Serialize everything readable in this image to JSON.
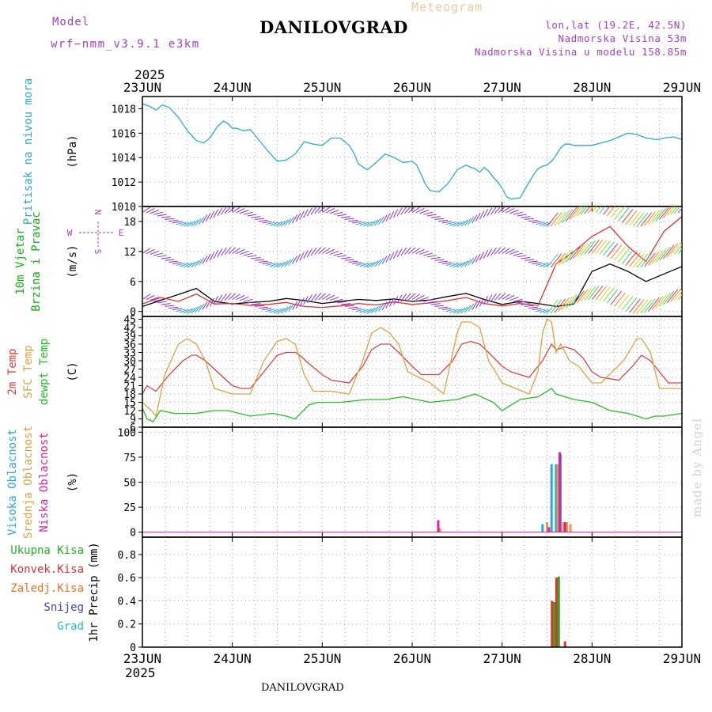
{
  "header": {
    "title": "DANILOVGRAD",
    "subtitle": "Meteogram",
    "model_label": "Model",
    "model_value": "wrf−nmm_v3.9.1  e3km",
    "location": "lon,lat (19.2E, 42.5N)",
    "elevation": "Nadmorska Visina 53m",
    "model_elevation": "Nadmorska Visina u modelu 158.85m",
    "footer_title": "DANILOVGRAD",
    "watermark": "made by Angel"
  },
  "time_axis": {
    "year": "2025",
    "labels": [
      "23JUN",
      "24JUN",
      "25JUN",
      "26JUN",
      "27JUN",
      "28JUN",
      "29JUN"
    ]
  },
  "chart_data": [
    {
      "type": "line",
      "id": "pressure",
      "ylabel": "(hPa)",
      "side_labels": [
        {
          "text": "Pritisak na nivou mora",
          "color": "#2aa8e0"
        }
      ],
      "ylim": [
        1010,
        1019
      ],
      "yticks": [
        1010,
        1012,
        1014,
        1016,
        1018
      ],
      "grid": true,
      "series": [
        {
          "color": "#2aa8e0",
          "x": [
            0,
            0.08,
            0.15,
            0.22,
            0.3,
            0.4,
            0.5,
            0.6,
            0.68,
            0.75,
            0.83,
            0.9,
            0.95,
            1.0,
            1.05,
            1.12,
            1.2,
            1.3,
            1.4,
            1.5,
            1.6,
            1.7,
            1.8,
            1.9,
            2.0,
            2.1,
            2.2,
            2.3,
            2.35,
            2.4,
            2.5,
            2.6,
            2.7,
            2.8,
            2.9,
            3.0,
            3.05,
            3.1,
            3.15,
            3.2,
            3.3,
            3.4,
            3.5,
            3.6,
            3.65,
            3.7,
            3.75,
            3.8,
            3.85,
            3.9,
            3.95,
            4.0,
            4.05,
            4.1,
            4.2,
            4.3,
            4.35,
            4.4,
            4.45,
            4.5,
            4.55,
            4.6,
            4.65,
            4.7,
            4.75,
            4.8,
            4.9,
            5.0,
            5.1,
            5.2,
            5.3,
            5.4,
            5.5,
            5.6,
            5.7,
            5.75,
            5.8,
            5.9,
            6.0
          ],
          "y": [
            1018.4,
            1018.2,
            1017.9,
            1018.3,
            1018.1,
            1017.3,
            1016.2,
            1015.4,
            1015.2,
            1015.6,
            1016.5,
            1017.0,
            1016.8,
            1016.4,
            1016.4,
            1016.2,
            1016.3,
            1015.4,
            1014.5,
            1013.7,
            1013.8,
            1014.3,
            1015.3,
            1015.1,
            1015.0,
            1015.6,
            1015.6,
            1015.0,
            1014.4,
            1013.5,
            1013.0,
            1013.6,
            1014.3,
            1014.0,
            1013.6,
            1013.7,
            1013.4,
            1012.6,
            1011.8,
            1011.3,
            1011.2,
            1011.9,
            1013.0,
            1013.4,
            1013.2,
            1013.1,
            1012.8,
            1013.2,
            1012.9,
            1012.4,
            1012.0,
            1011.5,
            1010.8,
            1010.6,
            1010.7,
            1012.0,
            1012.6,
            1013.1,
            1013.3,
            1013.4,
            1013.7,
            1014.2,
            1014.8,
            1015.1,
            1015.1,
            1015.0,
            1015.0,
            1015.0,
            1015.2,
            1015.4,
            1015.7,
            1016.0,
            1015.9,
            1015.6,
            1015.5,
            1015.5,
            1015.6,
            1015.7,
            1015.5
          ]
        }
      ]
    },
    {
      "type": "line",
      "id": "wind",
      "ylabel": "(m/s)",
      "side_labels": [
        {
          "text": "10m Vjetar",
          "color": "#10b010"
        },
        {
          "text": "Brzina i Pravac",
          "color": "#10b010"
        }
      ],
      "ylim": [
        -1,
        21
      ],
      "yticks": [
        0,
        6,
        12,
        18
      ],
      "grid": true,
      "compass": {
        "w": "W",
        "e": "E",
        "n": "N",
        "s": "S"
      },
      "series": [
        {
          "name": "speed",
          "color": "#000000",
          "x": [
            0,
            0.2,
            0.4,
            0.6,
            0.8,
            1.0,
            1.2,
            1.4,
            1.6,
            1.8,
            2.0,
            2.2,
            2.4,
            2.6,
            2.8,
            3.0,
            3.2,
            3.4,
            3.6,
            3.8,
            4.0,
            4.2,
            4.4,
            4.6,
            4.8,
            5.0,
            5.2,
            5.4,
            5.6,
            5.8,
            6.0
          ],
          "y": [
            1.0,
            2.2,
            3.4,
            4.6,
            2.0,
            1.5,
            1.8,
            2.0,
            2.6,
            2.2,
            1.6,
            2.0,
            2.4,
            2.2,
            2.5,
            2.0,
            2.3,
            3.0,
            3.6,
            2.4,
            1.4,
            2.0,
            1.6,
            1.0,
            1.5,
            8.0,
            9.5,
            8.0,
            6.0,
            7.5,
            9.0
          ]
        },
        {
          "name": "gust",
          "color": "#e03030",
          "x": [
            0,
            0.2,
            0.4,
            0.6,
            0.8,
            1.0,
            1.2,
            1.4,
            1.6,
            1.8,
            2.0,
            2.2,
            2.4,
            2.6,
            2.8,
            3.0,
            3.2,
            3.4,
            3.6,
            3.8,
            4.0,
            4.2,
            4.4,
            4.6,
            4.8,
            5.0,
            5.2,
            5.4,
            5.6,
            5.8,
            6.0
          ],
          "y": [
            1.5,
            2.8,
            2.0,
            3.5,
            1.5,
            1.6,
            1.2,
            1.4,
            1.8,
            1.0,
            0.8,
            1.1,
            1.6,
            1.3,
            1.9,
            1.4,
            1.7,
            2.2,
            2.8,
            1.6,
            1.1,
            1.6,
            1.2,
            9.5,
            12.0,
            15.0,
            17.0,
            13.0,
            10.0,
            16.0,
            19.0
          ]
        }
      ]
    },
    {
      "type": "line",
      "id": "temperature",
      "ylabel": "(C)",
      "side_labels": [
        {
          "text": "2m Temp",
          "color": "#e04040"
        },
        {
          "text": "SFC Temp",
          "color": "#e0a040"
        },
        {
          "text": "dewpt Temp",
          "color": "#20c020"
        }
      ],
      "ylim": [
        6,
        46
      ],
      "yticks": [
        6,
        9,
        12,
        15,
        18,
        21,
        24,
        27,
        30,
        33,
        36,
        39,
        42,
        45
      ],
      "grid": true,
      "series": [
        {
          "name": "2m",
          "color": "#e04040",
          "x": [
            0,
            0.05,
            0.1,
            0.15,
            0.3,
            0.45,
            0.55,
            0.6,
            0.7,
            0.8,
            0.9,
            1.0,
            1.1,
            1.2,
            1.35,
            1.5,
            1.6,
            1.7,
            1.75,
            1.85,
            2.0,
            2.1,
            2.3,
            2.45,
            2.55,
            2.65,
            2.75,
            2.85,
            3.0,
            3.1,
            3.3,
            3.45,
            3.55,
            3.65,
            3.75,
            3.85,
            4.0,
            4.1,
            4.3,
            4.45,
            4.5,
            4.55,
            4.6,
            4.7,
            4.8,
            4.9,
            5.0,
            5.1,
            5.3,
            5.45,
            5.55,
            5.65,
            5.75,
            5.85,
            6.0
          ],
          "y": [
            18,
            21,
            20,
            19,
            25,
            30,
            32,
            32,
            30,
            27,
            24,
            21,
            20,
            20,
            26,
            32,
            33,
            33,
            32,
            29,
            25,
            23,
            22,
            28,
            34,
            36,
            36,
            33,
            28,
            25,
            25,
            30,
            36,
            37,
            36,
            33,
            28,
            26,
            24,
            30,
            33,
            36,
            34,
            35,
            34,
            31,
            26,
            24,
            23,
            28,
            32,
            30,
            26,
            22,
            22
          ]
        },
        {
          "name": "SFC",
          "color": "#e0a040",
          "x": [
            0,
            0.1,
            0.15,
            0.25,
            0.4,
            0.5,
            0.6,
            0.7,
            0.8,
            0.9,
            1.0,
            1.2,
            1.35,
            1.5,
            1.6,
            1.7,
            1.8,
            1.9,
            2.1,
            2.3,
            2.45,
            2.55,
            2.65,
            2.75,
            2.85,
            2.95,
            3.2,
            3.35,
            3.5,
            3.55,
            3.65,
            3.75,
            3.85,
            4.0,
            4.3,
            4.4,
            4.45,
            4.5,
            4.55,
            4.6,
            4.65,
            4.75,
            4.85,
            5.0,
            5.1,
            5.35,
            5.5,
            5.55,
            5.65,
            5.75,
            5.85,
            6.0
          ],
          "y": [
            15,
            12,
            10,
            25,
            36,
            38,
            36,
            30,
            20,
            19,
            18,
            18,
            30,
            37,
            38,
            36,
            25,
            19,
            19,
            18,
            30,
            40,
            42,
            40,
            36,
            26,
            22,
            18,
            40,
            44,
            44,
            42,
            30,
            22,
            18,
            26,
            40,
            45,
            44,
            33,
            36,
            30,
            28,
            22,
            22,
            30,
            38,
            38,
            33,
            20,
            20,
            20
          ]
        },
        {
          "name": "dewpt",
          "color": "#20c020",
          "x": [
            0,
            0.05,
            0.12,
            0.2,
            0.35,
            0.6,
            0.8,
            0.95,
            1.2,
            1.45,
            1.6,
            1.7,
            1.85,
            1.95,
            2.2,
            2.5,
            2.7,
            2.9,
            3.2,
            3.5,
            3.7,
            3.9,
            4.0,
            4.2,
            4.4,
            4.55,
            4.6,
            4.8,
            5.0,
            5.2,
            5.4,
            5.6,
            5.7,
            5.8,
            6.0
          ],
          "y": [
            13,
            9,
            8,
            12,
            11,
            11,
            12,
            12,
            10,
            11,
            10,
            9,
            14,
            15,
            15,
            16,
            16,
            17,
            15,
            16,
            18,
            15,
            12,
            16,
            17,
            20,
            18,
            16,
            15,
            12,
            11,
            9,
            10,
            10,
            11
          ]
        }
      ]
    },
    {
      "type": "bar",
      "id": "cloud_cover",
      "ylabel": "(%)",
      "side_labels": [
        {
          "text": "Visoka Oblacnost",
          "color": "#2aa8e0"
        },
        {
          "text": "Srednja Oblacnost",
          "color": "#e0a040"
        },
        {
          "text": "Niska Oblacnost",
          "color": "#e020a0"
        }
      ],
      "ylim": [
        -5,
        105
      ],
      "yticks": [
        0,
        25,
        50,
        75,
        100
      ],
      "grid": true,
      "series": [
        {
          "name": "Visoka",
          "color": "#2aa8e0",
          "x": [
            3.3,
            4.45,
            4.55,
            4.6,
            4.65
          ],
          "y": [
            2,
            8,
            68,
            68,
            78
          ]
        },
        {
          "name": "Srednja",
          "color": "#e0a040",
          "x": [
            3.31,
            4.5,
            4.62,
            4.68,
            4.72,
            4.76
          ],
          "y": [
            4,
            10,
            68,
            10,
            10,
            8
          ]
        },
        {
          "name": "Niska",
          "color": "#e020a0",
          "x": [
            3.29,
            4.52,
            4.64,
            4.7
          ],
          "y": [
            12,
            5,
            80,
            10
          ]
        }
      ]
    },
    {
      "type": "bar",
      "id": "precipitation",
      "ylabel": "1hr Precip (mm)",
      "side_labels": [
        {
          "text": "Ukupna Kisa",
          "color": "#20b020"
        },
        {
          "text": "Konvek.Kisa",
          "color": "#e03030"
        },
        {
          "text": "Zaledj.Kisa",
          "color": "#f07020"
        },
        {
          "text": "Snijeg",
          "color": "#4040d0"
        },
        {
          "text": "Grad",
          "color": "#20c0c0"
        }
      ],
      "ylim": [
        0,
        0.95
      ],
      "yticks": [
        0,
        0.2,
        0.4,
        0.6,
        0.8
      ],
      "grid": true,
      "series": [
        {
          "name": "Ukupna Kisa",
          "color": "#20b020",
          "x": [
            4.58,
            4.63
          ],
          "y": [
            0.39,
            0.61
          ]
        },
        {
          "name": "Konvek.Kisa",
          "color": "#e03030",
          "x": [
            4.555,
            4.605,
            4.7
          ],
          "y": [
            0.4,
            0.6,
            0.05
          ]
        }
      ]
    }
  ]
}
